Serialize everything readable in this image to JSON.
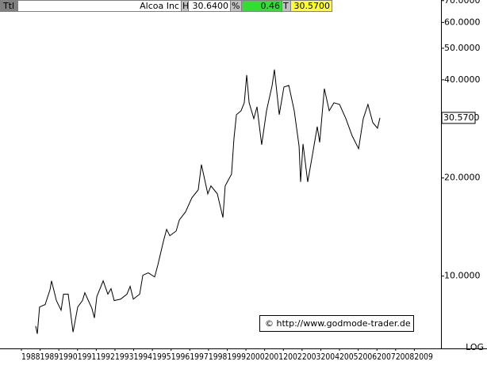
{
  "header": {
    "tag": "Ttl",
    "name": "Alcoa Inc",
    "high_label": "H",
    "high": "30.6400",
    "pct_label": "%",
    "pct": "0.46",
    "last_label": "T",
    "last": "30.5700"
  },
  "chart_data": {
    "type": "line",
    "color": "#000000",
    "log_scale": true,
    "scale_label": "LOG",
    "annotation": "© http://www.godmode-trader.de",
    "price_marker": {
      "value": 30.57,
      "label": "30.5700"
    },
    "xlim": [
      1988,
      2010
    ],
    "ylim": [
      6.0,
      70.3
    ],
    "xticks": [
      1988,
      1989,
      1990,
      1991,
      1992,
      1993,
      1994,
      1995,
      1996,
      1997,
      1998,
      1999,
      2000,
      2001,
      2002,
      2003,
      2004,
      2005,
      2006,
      2007,
      2008,
      2009
    ],
    "yticks": [
      {
        "value": 10,
        "label": "10.0000"
      },
      {
        "value": 20,
        "label": "20.0000"
      },
      {
        "value": 40,
        "label": "40.0000"
      },
      {
        "value": 50,
        "label": "50.0000"
      },
      {
        "value": 60,
        "label": "60.0000"
      },
      {
        "value": 70,
        "label": "70.0000"
      }
    ],
    "x": [
      1988.76,
      1988.85,
      1988.97,
      1989.27,
      1989.53,
      1989.61,
      1989.87,
      1990.12,
      1990.25,
      1990.5,
      1990.76,
      1991.01,
      1991.26,
      1991.39,
      1991.77,
      1991.9,
      1992.03,
      1992.37,
      1992.62,
      1992.79,
      1992.96,
      1993.3,
      1993.64,
      1993.81,
      1993.98,
      1994.32,
      1994.49,
      1994.78,
      1995.12,
      1995.29,
      1995.59,
      1995.76,
      1995.93,
      1996.27,
      1996.44,
      1996.77,
      1997.11,
      1997.45,
      1997.62,
      1997.96,
      1998.13,
      1998.47,
      1998.77,
      1998.89,
      1999.23,
      1999.36,
      1999.49,
      1999.74,
      1999.91,
      2000.04,
      2000.17,
      2000.42,
      2000.59,
      2000.84,
      2001.1,
      2001.4,
      2001.52,
      2001.78,
      2002.03,
      2002.29,
      2002.58,
      2002.84,
      2002.92,
      2003.05,
      2003.3,
      2003.56,
      2003.81,
      2003.94,
      2004.19,
      2004.45,
      2004.7,
      2005.0,
      2005.34,
      2005.68,
      2006.02,
      2006.27,
      2006.52,
      2006.78,
      2007.03,
      2007.16
    ],
    "values": [
      7.03,
      6.65,
      8.04,
      8.18,
      9.09,
      9.67,
      8.41,
      7.86,
      8.8,
      8.8,
      6.73,
      8.04,
      8.41,
      8.89,
      7.95,
      7.44,
      8.65,
      9.67,
      8.8,
      9.15,
      8.41,
      8.5,
      8.8,
      9.3,
      8.5,
      8.8,
      10.06,
      10.23,
      9.94,
      10.81,
      12.79,
      13.91,
      13.3,
      13.75,
      14.87,
      15.73,
      17.39,
      18.39,
      21.99,
      17.88,
      18.91,
      17.88,
      15.12,
      18.91,
      20.56,
      26.45,
      31.27,
      32.16,
      34.01,
      41.36,
      34.01,
      30.41,
      33.07,
      25.29,
      32.16,
      38.46,
      43.01,
      31.27,
      38.03,
      38.46,
      32.16,
      25.0,
      19.45,
      25.43,
      19.45,
      23.64,
      28.75,
      25.72,
      37.6,
      32.16,
      34.01,
      33.63,
      30.41,
      26.9,
      24.59,
      30.41,
      33.63,
      29.57,
      28.43,
      30.57
    ]
  }
}
